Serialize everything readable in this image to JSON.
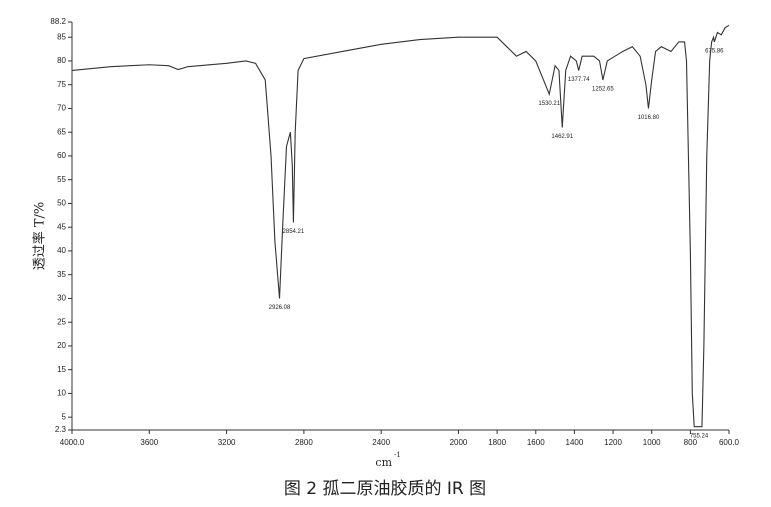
{
  "chart_data": {
    "type": "line",
    "title": "图 2  孤二原油胶质的 IR 图",
    "y_label": "透过率 T/%",
    "x_label": "cm",
    "x_label_superscript": "-1",
    "xlim": [
      4000,
      600
    ],
    "ylim": [
      2.3,
      88.2
    ],
    "xticks": [
      {
        "value": 4000,
        "label": "4000.0"
      },
      3600,
      3200,
      2800,
      2400,
      2000,
      1800,
      1600,
      1400,
      1200,
      1000,
      800,
      {
        "value": 600,
        "label": "600.0"
      }
    ],
    "yticks": [
      2.3,
      5,
      10,
      15,
      20,
      25,
      30,
      35,
      40,
      45,
      50,
      55,
      60,
      65,
      70,
      75,
      80,
      85,
      88.2
    ],
    "series": [
      {
        "name": "IR",
        "color": "#333333",
        "x": [
          4000,
          3800,
          3600,
          3500,
          3450,
          3400,
          3200,
          3100,
          3050,
          3000,
          2970,
          2950,
          2926.08,
          2910,
          2890,
          2870,
          2860,
          2854.21,
          2845,
          2830,
          2800,
          2600,
          2400,
          2200,
          2000,
          1800,
          1750,
          1700,
          1650,
          1600,
          1560,
          1530.21,
          1500,
          1480,
          1462.91,
          1445,
          1420,
          1390,
          1377.74,
          1360,
          1300,
          1270,
          1252.65,
          1230,
          1150,
          1100,
          1060,
          1030,
          1016.8,
          1000,
          980,
          950,
          900,
          860,
          830,
          820,
          800,
          790,
          780,
          755.24,
          740,
          730,
          715,
          700,
          690,
          680,
          675.86,
          660,
          640,
          620,
          600
        ],
        "values": [
          78,
          78.8,
          79.2,
          79,
          78.2,
          78.8,
          79.5,
          80,
          79.5,
          76,
          60,
          42,
          30,
          45,
          62,
          65,
          58,
          46,
          65,
          78,
          80.5,
          82,
          83.5,
          84.5,
          85,
          85,
          83,
          81,
          82,
          80,
          76,
          73,
          79,
          78,
          66,
          78,
          81,
          80,
          78,
          81,
          81,
          80,
          76,
          80,
          82,
          83,
          81,
          75,
          70,
          76,
          82,
          83,
          82,
          84,
          84,
          80,
          40,
          10,
          3,
          3,
          3,
          20,
          60,
          80,
          84,
          85,
          84,
          86,
          85.5,
          87,
          87.5
        ]
      }
    ],
    "annotations": [
      {
        "x": 2926.08,
        "y": 30,
        "label": "2926.08"
      },
      {
        "x": 2854.21,
        "y": 46,
        "label": "2854.21"
      },
      {
        "x": 1530.21,
        "y": 73,
        "label": "1530.21"
      },
      {
        "x": 1462.91,
        "y": 66,
        "label": "1462.91"
      },
      {
        "x": 1377.74,
        "y": 78,
        "label": "1377.74"
      },
      {
        "x": 1252.65,
        "y": 76,
        "label": "1252.65"
      },
      {
        "x": 1016.8,
        "y": 70,
        "label": "1016.80"
      },
      {
        "x": 755.24,
        "y": 3,
        "label": "755.24"
      },
      {
        "x": 675.86,
        "y": 84,
        "label": "675.86"
      }
    ]
  }
}
